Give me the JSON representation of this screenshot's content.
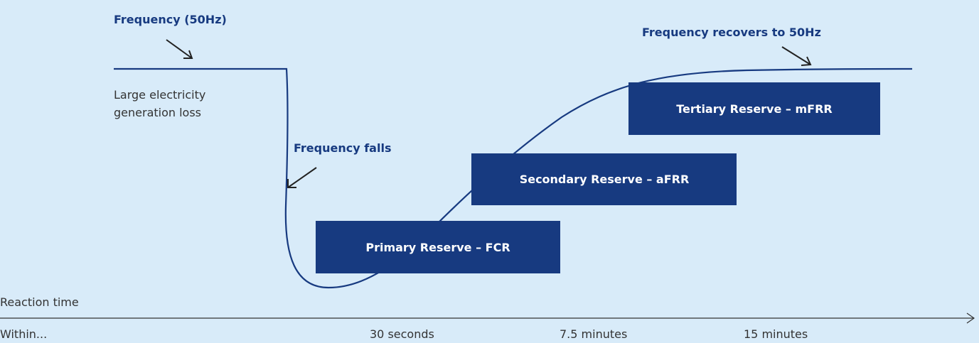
{
  "labels": {
    "frequency": "Frequency (50Hz)",
    "generation_loss": [
      "Large electricity",
      "generation loss"
    ],
    "falls": "Frequency falls",
    "recovers": "Frequency recovers to 50Hz"
  },
  "reserves": [
    {
      "label": "Primary Reserve – FCR"
    },
    {
      "label": "Secondary Reserve – aFRR"
    },
    {
      "label": "Tertiary Reserve – mFRR"
    }
  ],
  "axis": {
    "title": "Reaction time",
    "start": "Within...",
    "ticks": [
      "30 seconds",
      "7.5 minutes",
      "15 minutes"
    ]
  }
}
